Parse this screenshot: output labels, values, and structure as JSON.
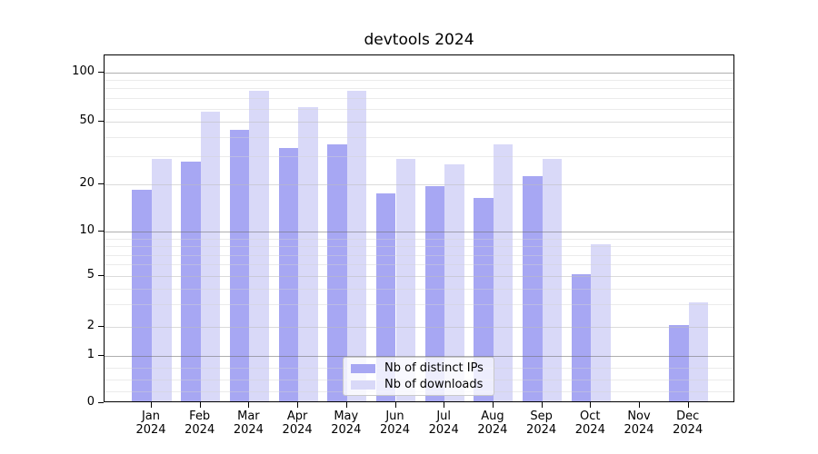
{
  "chart_data": {
    "type": "bar",
    "title": "devtools 2024",
    "categories": [
      "Jan",
      "Feb",
      "Mar",
      "Apr",
      "May",
      "Jun",
      "Jul",
      "Aug",
      "Sep",
      "Oct",
      "Nov",
      "Dec"
    ],
    "year": "2024",
    "series": [
      {
        "name": "Nb of distinct IPs",
        "color": "#a7a7f3",
        "values": [
          18,
          27,
          43,
          33,
          35,
          17,
          19,
          16,
          22,
          5,
          0,
          2
        ]
      },
      {
        "name": "Nb of downloads",
        "color": "#d9d9f8",
        "values": [
          28,
          56,
          75,
          60,
          75,
          28,
          26,
          35,
          28,
          8,
          0,
          3
        ]
      }
    ],
    "yticks": [
      0,
      1,
      2,
      5,
      10,
      20,
      50,
      100
    ],
    "ylim": [
      0,
      130
    ],
    "y_scale": "asinh-like (logarithmic above 1, linear below 1)",
    "grid": "horizontal; darker lines at 1/10/100, lighter at labeled and unlabeled minors",
    "y_gridlines": {
      "major": [
        1,
        10,
        100
      ],
      "mid": [
        2,
        5,
        20,
        50
      ],
      "faint": [
        0.25,
        0.5,
        0.75,
        3,
        4,
        6,
        7,
        8,
        9,
        30,
        40,
        60,
        70,
        80,
        90
      ]
    },
    "legend_position": "lower center inside plot"
  }
}
